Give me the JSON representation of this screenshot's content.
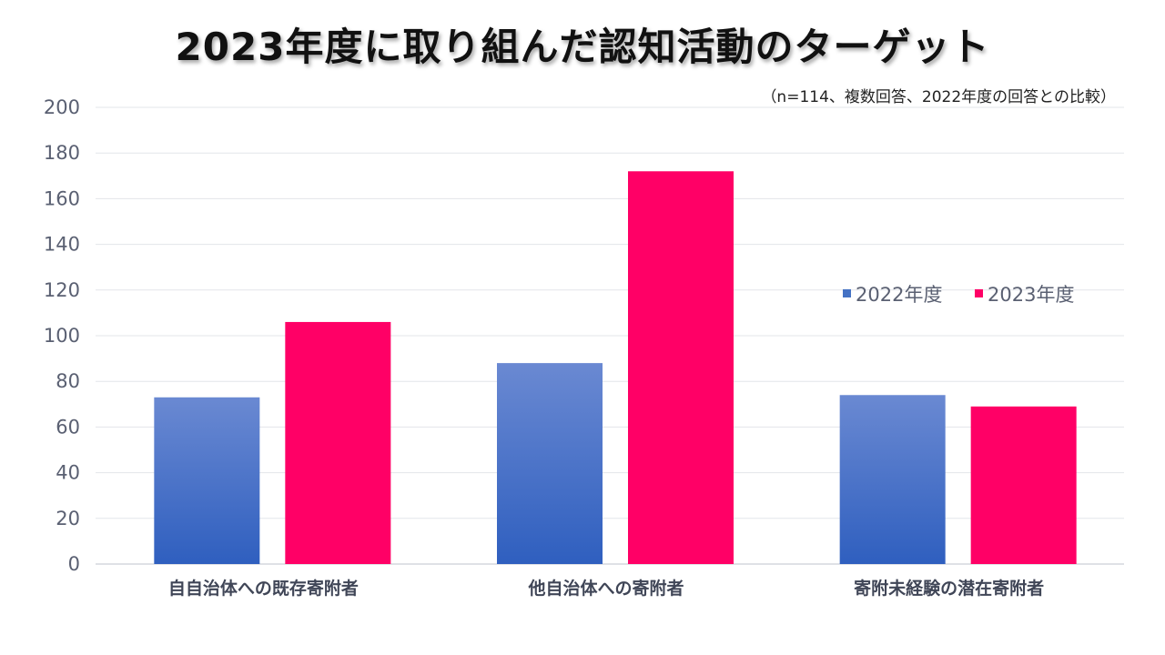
{
  "chart_data": {
    "type": "bar",
    "title": "2023年度に取り組んだ認知活動のターゲット",
    "subtitle": "（n=114、複数回答、2022年度の回答との比較）",
    "categories": [
      "自自治体への既存寄附者",
      "他自治体への寄附者",
      "寄附未経験の潜在寄附者"
    ],
    "series": [
      {
        "name": "2022年度",
        "values": [
          73,
          88,
          74
        ],
        "color": "#4472c4"
      },
      {
        "name": "2023年度",
        "values": [
          106,
          172,
          69
        ],
        "color": "#ff0066"
      }
    ],
    "ylim": [
      0,
      200
    ],
    "yticks": [
      0,
      20,
      40,
      60,
      80,
      100,
      120,
      140,
      160,
      180,
      200
    ],
    "grid": true,
    "legend_position": "right"
  }
}
